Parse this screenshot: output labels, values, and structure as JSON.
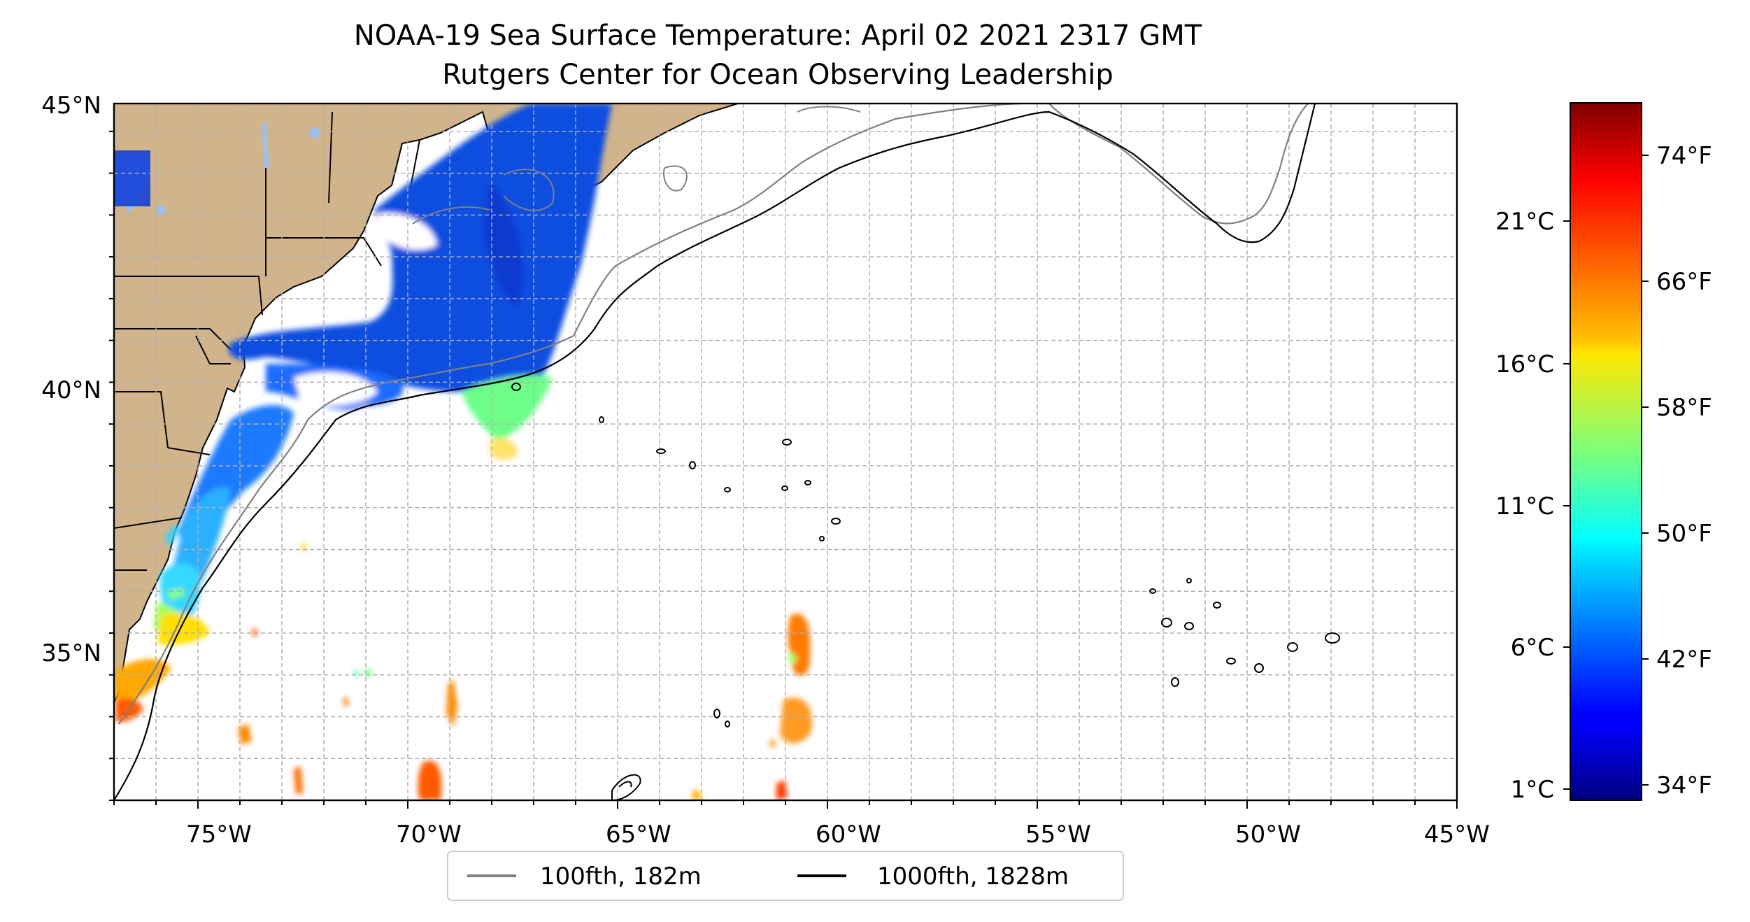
{
  "title": {
    "line1": "NOAA-19 Sea Surface Temperature: April 02 2021 2317 GMT",
    "line2": "Rutgers Center for Ocean Observing Leadership"
  },
  "map": {
    "lat_ticks": [
      "45°N",
      "40°N",
      "35°N"
    ],
    "lon_ticks": [
      "75°W",
      "70°W",
      "65°W",
      "60°W",
      "55°W",
      "50°W",
      "45°W"
    ],
    "lon_range": [
      -77,
      -45
    ],
    "lat_range": [
      32.5,
      45
    ],
    "land_color": "#d2b48c",
    "lake_color": "#9ec0e6",
    "grid": true
  },
  "legend": {
    "items": [
      {
        "label": "100fth, 182m",
        "color": "#808080"
      },
      {
        "label": "1000fth, 1828m",
        "color": "#000000"
      }
    ]
  },
  "colorbar": {
    "colormap": "jet",
    "celsius_ticks": [
      "21°C",
      "16°C",
      "11°C",
      "6°C",
      "1°C"
    ],
    "fahrenheit_ticks": [
      "74°F",
      "66°F",
      "58°F",
      "50°F",
      "42°F",
      "34°F"
    ]
  }
}
